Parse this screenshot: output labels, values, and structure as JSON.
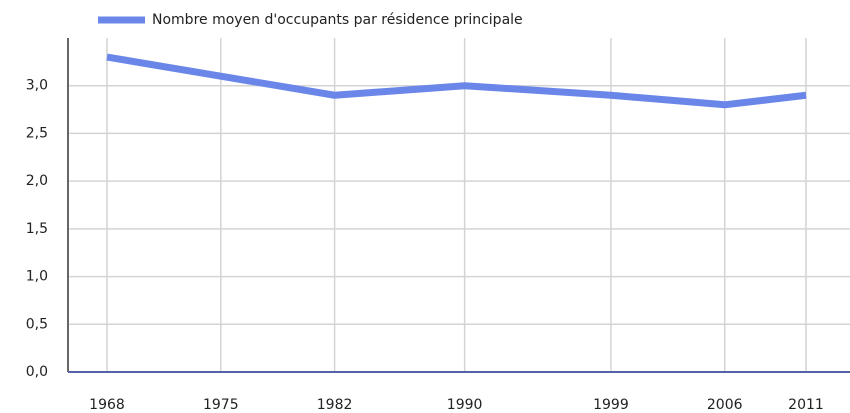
{
  "chart_data": {
    "type": "line",
    "x": [
      1968,
      1975,
      1982,
      1990,
      1999,
      2006,
      2011
    ],
    "series": [
      {
        "name": "Nombre moyen d'occupants par résidence principale",
        "color": "#6a86e8",
        "values": [
          3.3,
          3.1,
          2.9,
          3.0,
          2.9,
          2.8,
          2.9
        ]
      }
    ],
    "xlim": [
      1968,
      2011
    ],
    "xticks": [
      1968,
      1975,
      1982,
      1990,
      1999,
      2006,
      2011
    ],
    "ylim": [
      0,
      3.5
    ],
    "yticks": [
      {
        "value": 0,
        "label": "0,0"
      },
      {
        "value": 0.5,
        "label": "0,5"
      },
      {
        "value": 1,
        "label": "1,0"
      },
      {
        "value": 1.5,
        "label": "1,5"
      },
      {
        "value": 2,
        "label": "2,0"
      },
      {
        "value": 2.5,
        "label": "2,5"
      },
      {
        "value": 3,
        "label": "3,0"
      }
    ],
    "grid": true,
    "legend": "top"
  }
}
